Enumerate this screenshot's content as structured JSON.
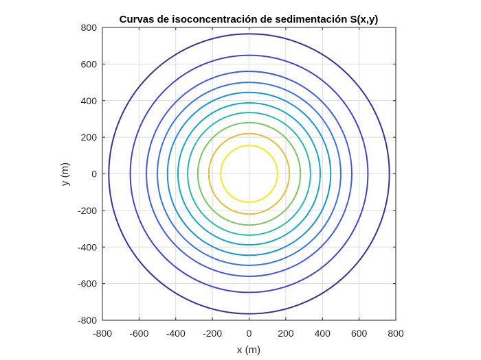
{
  "chart_data": {
    "type": "contour",
    "title": "Curvas de isoconcentración de sedimentación S(x,y)",
    "xlabel": "x (m)",
    "ylabel": "y (m)",
    "xlim": [
      -800,
      800
    ],
    "ylim": [
      -800,
      800
    ],
    "xticks": [
      "-800",
      "-600",
      "-400",
      "-200",
      "0",
      "200",
      "400",
      "600",
      "800"
    ],
    "yticks": [
      "-800",
      "-600",
      "-400",
      "-200",
      "0",
      "200",
      "400",
      "600",
      "800"
    ],
    "xtick_values": [
      -800,
      -600,
      -400,
      -200,
      0,
      200,
      400,
      600,
      800
    ],
    "ytick_values": [
      -800,
      -600,
      -400,
      -200,
      0,
      200,
      400,
      600,
      800
    ],
    "grid": true,
    "center": [
      0,
      0
    ],
    "contours": [
      {
        "radius": 765,
        "color": "#3d2f9a"
      },
      {
        "radius": 648,
        "color": "#4045c8"
      },
      {
        "radius": 560,
        "color": "#4258e0"
      },
      {
        "radius": 500,
        "color": "#3b6fe6"
      },
      {
        "radius": 445,
        "color": "#1e8ed6"
      },
      {
        "radius": 388,
        "color": "#13a6c6"
      },
      {
        "radius": 335,
        "color": "#26b8a8"
      },
      {
        "radius": 280,
        "color": "#7cc460"
      },
      {
        "radius": 220,
        "color": "#e0bd3a"
      },
      {
        "radius": 155,
        "color": "#f5e62a"
      }
    ]
  }
}
